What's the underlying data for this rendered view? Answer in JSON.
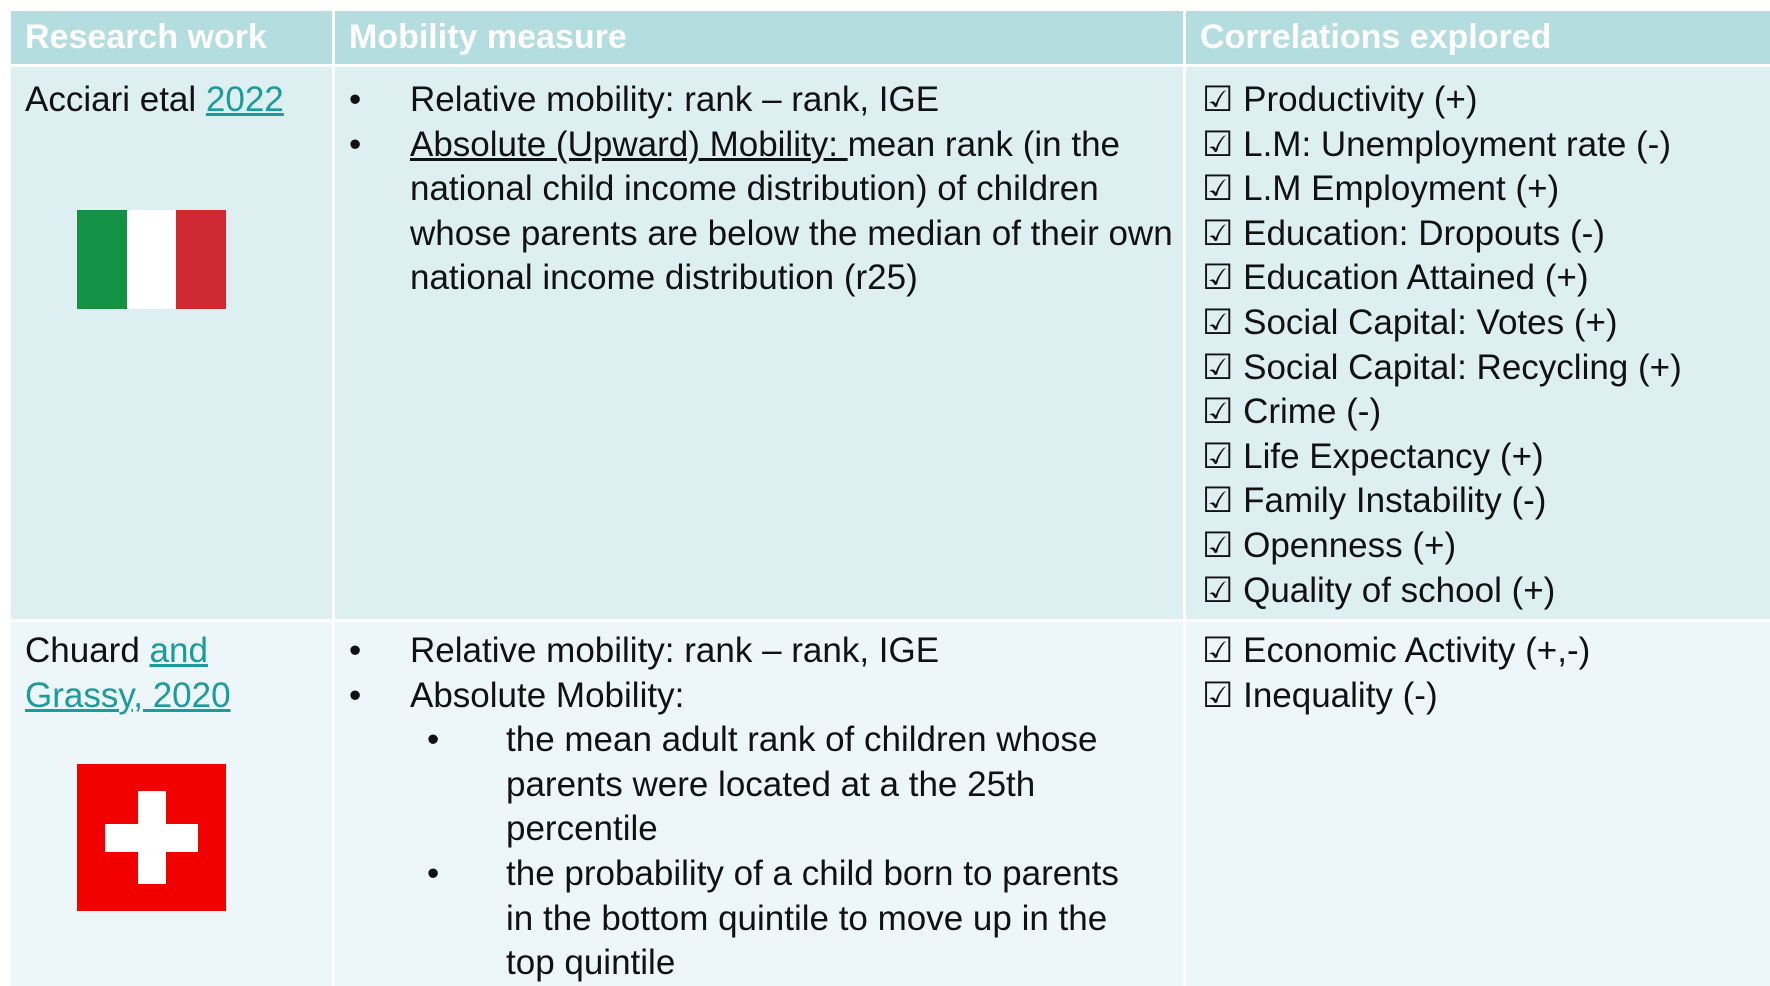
{
  "table": {
    "header": [
      "Research work",
      "Mobility measure",
      "Correlations explored"
    ],
    "rows": [
      {
        "research": {
          "text": "Acciari etal ",
          "link": "2022"
        },
        "mobility": [
          {
            "text": "Relative mobility: rank – rank, IGE"
          },
          {
            "underlined": "Absolute (Upward) Mobility: ",
            "text": "mean rank (in the national child income distribution) of children whose parents are below the median of their own national income distribution (r25)"
          }
        ],
        "correlations": [
          "☑ Productivity (+)",
          "☑ L.M: Unemployment rate (-)",
          "☑ L.M Employment (+)",
          "☑ Education: Dropouts (-)",
          "☑ Education Attained (+)",
          "☑ Social Capital: Votes (+)",
          "☑ Social Capital: Recycling (+)",
          "☑ Crime (-)",
          "☑ Life Expectancy (+)",
          "☑ Family Instability (-)",
          "☑ Openness (+)",
          "☑ Quality of school (+)"
        ]
      },
      {
        "research": {
          "text": "Chuard ",
          "link": "and Grassy, 2020"
        },
        "mobility": [
          {
            "text": "Relative mobility: rank – rank, IGE"
          },
          {
            "text": "Absolute Mobility:",
            "subitems": [
              "the mean adult rank of children whose parents were located at a the 25th percentile",
              "the probability of a child born to parents in the bottom quintile to move up in the top quintile"
            ]
          }
        ],
        "correlations": [
          "☑ Economic Activity (+,-)",
          "☑ Inequality (-)"
        ]
      }
    ]
  }
}
